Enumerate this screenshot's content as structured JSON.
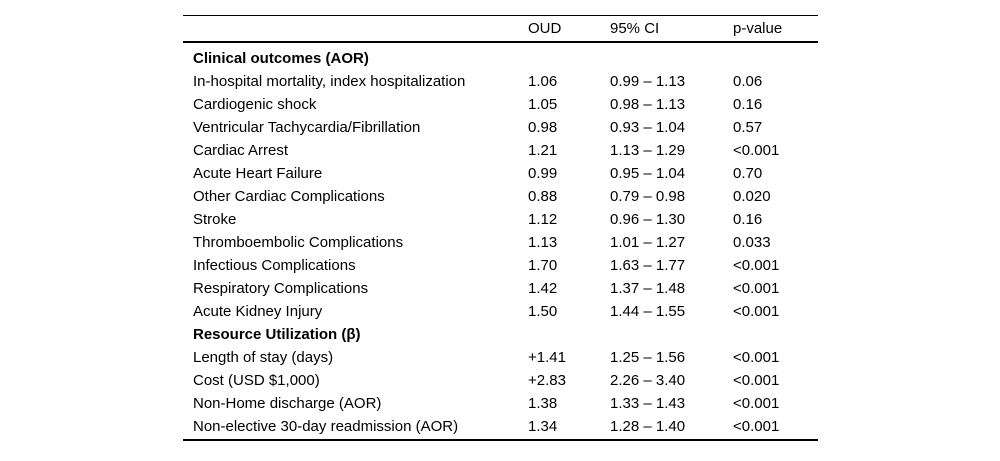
{
  "colors": {
    "text": "#000000",
    "rule": "#000000",
    "background": "#ffffff"
  },
  "table": {
    "col_headers": {
      "label": "",
      "oud": "OUD",
      "ci": "95% CI",
      "p": "p-value"
    },
    "sections": [
      {
        "title": "Clinical outcomes (AOR)",
        "rows": [
          {
            "label": "In-hospital mortality, index hospitalization",
            "oud": "1.06",
            "ci": "0.99 – 1.13",
            "p": "0.06"
          },
          {
            "label": "Cardiogenic shock",
            "oud": "1.05",
            "ci": "0.98 – 1.13",
            "p": "0.16"
          },
          {
            "label": "Ventricular Tachycardia/Fibrillation",
            "oud": "0.98",
            "ci": "0.93 – 1.04",
            "p": "0.57"
          },
          {
            "label": "Cardiac Arrest",
            "oud": "1.21",
            "ci": "1.13 – 1.29",
            "p": "<0.001"
          },
          {
            "label": "Acute Heart Failure",
            "oud": "0.99",
            "ci": "0.95 – 1.04",
            "p": "0.70"
          },
          {
            "label": "Other Cardiac Complications",
            "oud": "0.88",
            "ci": "0.79 – 0.98",
            "p": "0.020"
          },
          {
            "label": "Stroke",
            "oud": "1.12",
            "ci": "0.96 – 1.30",
            "p": "0.16"
          },
          {
            "label": "Thromboembolic Complications",
            "oud": "1.13",
            "ci": "1.01 – 1.27",
            "p": "0.033"
          },
          {
            "label": "Infectious Complications",
            "oud": "1.70",
            "ci": "1.63 – 1.77",
            "p": "<0.001"
          },
          {
            "label": "Respiratory Complications",
            "oud": "1.42",
            "ci": "1.37 – 1.48",
            "p": "<0.001"
          },
          {
            "label": "Acute Kidney Injury",
            "oud": "1.50",
            "ci": "1.44 – 1.55",
            "p": "<0.001"
          }
        ]
      },
      {
        "title": "Resource Utilization (β)",
        "rows": [
          {
            "label": "Length of stay (days)",
            "oud": "+1.41",
            "ci": "1.25 – 1.56",
            "p": "<0.001"
          },
          {
            "label": "Cost (USD $1,000)",
            "oud": "+2.83",
            "ci": "2.26 – 3.40",
            "p": "<0.001"
          },
          {
            "label": "Non-Home discharge (AOR)",
            "oud": "1.38",
            "ci": "1.33 – 1.43",
            "p": "<0.001"
          },
          {
            "label": "Non-elective 30-day readmission (AOR)",
            "oud": "1.34",
            "ci": "1.28 – 1.40",
            "p": "<0.001"
          }
        ]
      }
    ]
  }
}
